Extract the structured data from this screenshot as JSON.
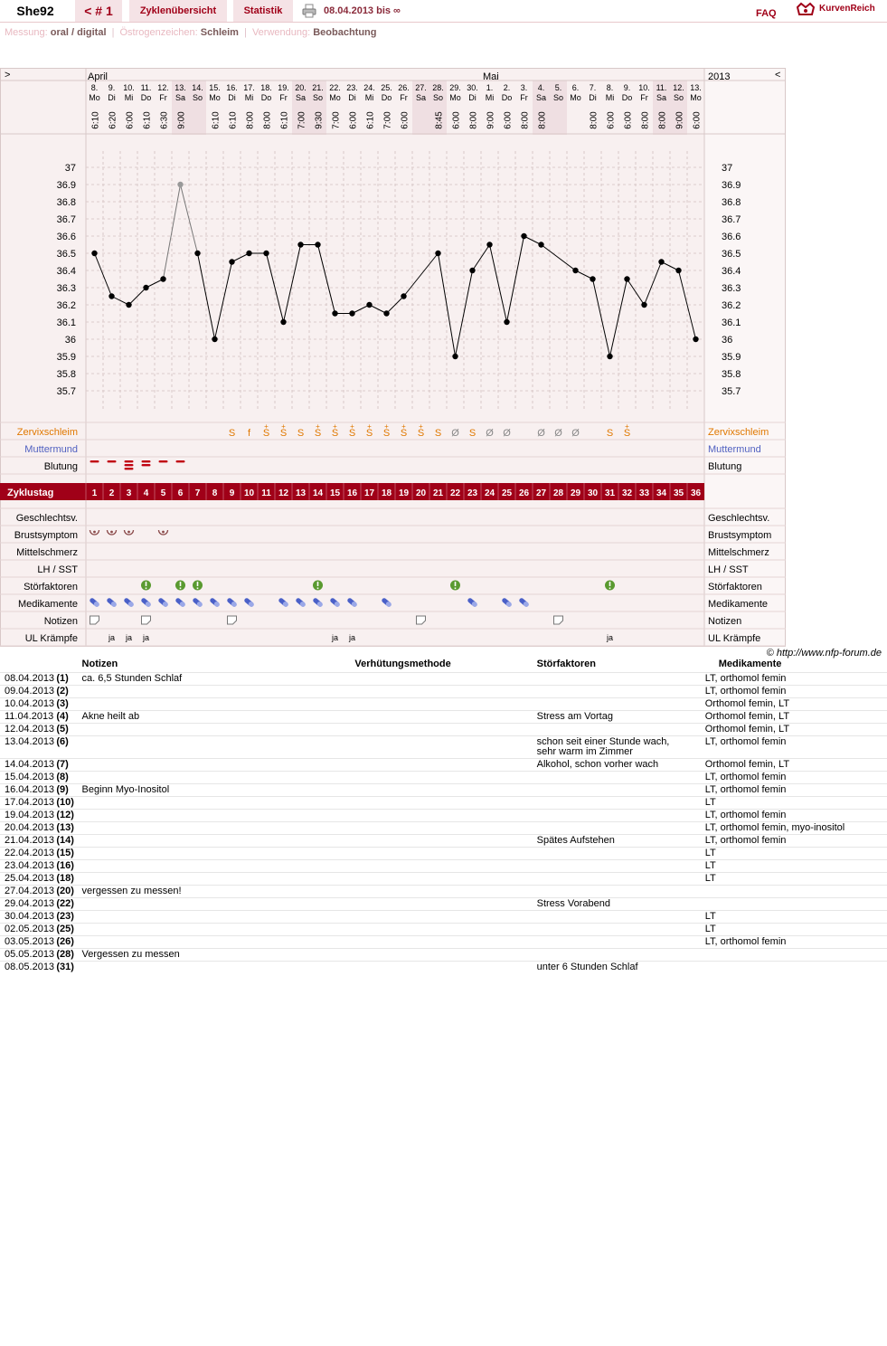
{
  "header": {
    "user": "She92",
    "cycle": "< # 1",
    "tab_overview": "Zyklenübersicht",
    "tab_stats": "Statistik",
    "range": "08.04.2013 bis ∞",
    "faq": "FAQ",
    "logo": "KurvenReich"
  },
  "info": {
    "messung_label": "Messung:",
    "messung_value": "oral / digital",
    "oestrogen_label": "Östrogenzeichen:",
    "oestrogen_value": "Schleim",
    "verwendung_label": "Verwendung:",
    "verwendung_value": "Beobachtung"
  },
  "chart_nav": {
    "prev": ">",
    "next": "<",
    "year": "2013",
    "month1": "April",
    "month2": "Mai"
  },
  "days": [
    {
      "d": "8.",
      "w": "Mo",
      "t": "6:10",
      "we": false
    },
    {
      "d": "9.",
      "w": "Di",
      "t": "6:20",
      "we": false
    },
    {
      "d": "10.",
      "w": "Mi",
      "t": "6:00",
      "we": false
    },
    {
      "d": "11.",
      "w": "Do",
      "t": "6:10",
      "we": false
    },
    {
      "d": "12.",
      "w": "Fr",
      "t": "6:30",
      "we": false
    },
    {
      "d": "13.",
      "w": "Sa",
      "t": "9:00",
      "we": true
    },
    {
      "d": "14.",
      "w": "So",
      "t": "",
      "we": true
    },
    {
      "d": "15.",
      "w": "Mo",
      "t": "6:10",
      "we": false
    },
    {
      "d": "16.",
      "w": "Di",
      "t": "6:10",
      "we": false
    },
    {
      "d": "17.",
      "w": "Mi",
      "t": "8:00",
      "we": false
    },
    {
      "d": "18.",
      "w": "Do",
      "t": "8:00",
      "we": false
    },
    {
      "d": "19.",
      "w": "Fr",
      "t": "6:10",
      "we": false
    },
    {
      "d": "20.",
      "w": "Sa",
      "t": "7:00",
      "we": true
    },
    {
      "d": "21.",
      "w": "So",
      "t": "9:30",
      "we": true
    },
    {
      "d": "22.",
      "w": "Mo",
      "t": "7:00",
      "we": false
    },
    {
      "d": "23.",
      "w": "Di",
      "t": "6:00",
      "we": false
    },
    {
      "d": "24.",
      "w": "Mi",
      "t": "6:10",
      "we": false
    },
    {
      "d": "25.",
      "w": "Do",
      "t": "7:00",
      "we": false
    },
    {
      "d": "26.",
      "w": "Fr",
      "t": "6:00",
      "we": false
    },
    {
      "d": "27.",
      "w": "Sa",
      "t": "",
      "we": true
    },
    {
      "d": "28.",
      "w": "So",
      "t": "8:45",
      "we": true
    },
    {
      "d": "29.",
      "w": "Mo",
      "t": "6:00",
      "we": false
    },
    {
      "d": "30.",
      "w": "Di",
      "t": "8:00",
      "we": false
    },
    {
      "d": "1.",
      "w": "Mi",
      "t": "9:00",
      "we": false
    },
    {
      "d": "2.",
      "w": "Do",
      "t": "6:00",
      "we": false
    },
    {
      "d": "3.",
      "w": "Fr",
      "t": "8:00",
      "we": false
    },
    {
      "d": "4.",
      "w": "Sa",
      "t": "8:00",
      "we": true
    },
    {
      "d": "5.",
      "w": "So",
      "t": "",
      "we": true
    },
    {
      "d": "6.",
      "w": "Mo",
      "t": "",
      "we": false
    },
    {
      "d": "7.",
      "w": "Di",
      "t": "8:00",
      "we": false
    },
    {
      "d": "8.",
      "w": "Mi",
      "t": "6:00",
      "we": false
    },
    {
      "d": "9.",
      "w": "Do",
      "t": "6:00",
      "we": false
    },
    {
      "d": "10.",
      "w": "Fr",
      "t": "8:00",
      "we": false
    },
    {
      "d": "11.",
      "w": "Sa",
      "t": "8:00",
      "we": true
    },
    {
      "d": "12.",
      "w": "So",
      "t": "9:00",
      "we": true
    },
    {
      "d": "13.",
      "w": "Mo",
      "t": "6:00",
      "we": false
    }
  ],
  "chart_data": {
    "type": "line",
    "title": "",
    "y_ticks": [
      "37",
      "36.9",
      "36.8",
      "36.7",
      "36.6",
      "36.5",
      "36.4",
      "36.3",
      "36.2",
      "36.1",
      "36",
      "35.9",
      "35.8",
      "35.7"
    ],
    "ylim": [
      35.6,
      37.0
    ],
    "x": [
      1,
      2,
      3,
      4,
      5,
      6,
      7,
      8,
      9,
      10,
      11,
      12,
      13,
      14,
      15,
      16,
      17,
      18,
      19,
      20,
      21,
      22,
      23,
      24,
      25,
      26,
      27,
      28,
      29,
      30,
      31,
      32,
      33,
      34,
      35,
      36
    ],
    "temperatures": [
      36.5,
      36.25,
      36.2,
      36.3,
      36.35,
      36.9,
      36.5,
      36.0,
      36.45,
      36.5,
      36.5,
      36.1,
      36.55,
      36.55,
      36.15,
      36.15,
      36.2,
      36.15,
      36.25,
      null,
      36.5,
      35.9,
      36.4,
      36.55,
      36.1,
      36.6,
      36.55,
      null,
      36.4,
      36.35,
      35.9,
      36.35,
      36.2,
      36.45,
      36.4,
      36.0
    ],
    "excluded_days": [
      6
    ],
    "grid": true
  },
  "labels": {
    "zervix": "Zervixschleim",
    "muttermund": "Muttermund",
    "blutung": "Blutung",
    "zyklustag": "Zyklustag",
    "gv": "Geschlechtsv.",
    "brust": "Brustsymptom",
    "mittel": "Mittelschmerz",
    "lh": "LH / SST",
    "stoer": "Störfaktoren",
    "medi": "Medikamente",
    "notizen": "Notizen",
    "ul": "UL Krämpfe"
  },
  "rows": {
    "zervix": [
      "",
      "",
      "",
      "",
      "",
      "",
      "",
      "",
      "S",
      "f",
      "S+",
      "S+",
      "S",
      "S+",
      "S+",
      "S+",
      "S+",
      "S+",
      "S+",
      "S+",
      "S",
      "Ø",
      "S",
      "Ø",
      "Ø",
      "",
      "Ø",
      "Ø",
      "Ø",
      "",
      "S",
      "S+",
      "",
      "",
      "",
      ""
    ],
    "blutung": [
      1,
      1,
      3,
      2,
      1,
      1,
      0,
      0,
      0,
      0,
      0,
      0,
      0,
      0,
      0,
      0,
      0,
      0,
      0,
      0,
      0,
      0,
      0,
      0,
      0,
      0,
      0,
      0,
      0,
      0,
      0,
      0,
      0,
      0,
      0,
      0
    ],
    "brust": [
      1,
      1,
      1,
      0,
      1,
      0,
      0,
      0,
      0,
      0,
      0,
      0,
      0,
      0,
      0,
      0,
      0,
      0,
      0,
      0,
      0,
      0,
      0,
      0,
      0,
      0,
      0,
      0,
      0,
      0,
      0,
      0,
      0,
      0,
      0,
      0
    ],
    "stoer": [
      0,
      0,
      0,
      1,
      0,
      1,
      1,
      0,
      0,
      0,
      0,
      0,
      0,
      1,
      0,
      0,
      0,
      0,
      0,
      0,
      0,
      1,
      0,
      0,
      0,
      0,
      0,
      0,
      0,
      0,
      1,
      0,
      0,
      0,
      0,
      0
    ],
    "medi": [
      1,
      1,
      1,
      1,
      1,
      1,
      1,
      1,
      1,
      1,
      0,
      1,
      1,
      1,
      1,
      1,
      0,
      1,
      0,
      0,
      0,
      0,
      1,
      0,
      1,
      1,
      0,
      0,
      0,
      0,
      0,
      0,
      0,
      0,
      0,
      0
    ],
    "notizen": [
      1,
      0,
      0,
      1,
      0,
      0,
      0,
      0,
      1,
      0,
      0,
      0,
      0,
      0,
      0,
      0,
      0,
      0,
      0,
      1,
      0,
      0,
      0,
      0,
      0,
      0,
      0,
      1,
      0,
      0,
      0,
      0,
      0,
      0,
      0,
      0
    ],
    "ul": [
      "",
      "ja",
      "ja",
      "ja",
      "",
      "",
      "",
      "",
      "",
      "",
      "",
      "",
      "",
      "",
      "ja",
      "ja",
      "",
      "",
      "",
      "",
      "",
      "",
      "",
      "",
      "",
      "",
      "",
      "",
      "",
      "",
      "ja",
      "",
      "",
      "",
      "",
      ""
    ]
  },
  "copyright": "© http://www.nfp-forum.de",
  "notes_table": {
    "headers": {
      "notizen": "Notizen",
      "verhuetung": "Verhütungsmethode",
      "stoer": "Störfaktoren",
      "medi": "Medikamente"
    },
    "rows": [
      {
        "date": "08.04.2013",
        "day": "(1)",
        "notiz": "ca. 6,5 Stunden Schlaf",
        "verh": "",
        "stoer": "",
        "medi": "LT, orthomol femin"
      },
      {
        "date": "09.04.2013",
        "day": "(2)",
        "notiz": "",
        "verh": "",
        "stoer": "",
        "medi": "LT, orthomol femin"
      },
      {
        "date": "10.04.2013",
        "day": "(3)",
        "notiz": "",
        "verh": "",
        "stoer": "",
        "medi": "Orthomol femin, LT"
      },
      {
        "date": "11.04.2013",
        "day": "(4)",
        "notiz": "Akne heilt ab",
        "verh": "",
        "stoer": "Stress am Vortag",
        "medi": "Orthomol femin, LT"
      },
      {
        "date": "12.04.2013",
        "day": "(5)",
        "notiz": "",
        "verh": "",
        "stoer": "",
        "medi": "Orthomol femin, LT"
      },
      {
        "date": "13.04.2013",
        "day": "(6)",
        "notiz": "",
        "verh": "",
        "stoer": "schon seit einer Stunde wach,\nsehr warm im Zimmer",
        "medi": "LT, orthomol femin"
      },
      {
        "date": "14.04.2013",
        "day": "(7)",
        "notiz": "",
        "verh": "",
        "stoer": "Alkohol, schon vorher wach",
        "medi": "Orthomol femin, LT"
      },
      {
        "date": "15.04.2013",
        "day": "(8)",
        "notiz": "",
        "verh": "",
        "stoer": "",
        "medi": "LT, orthomol femin"
      },
      {
        "date": "16.04.2013",
        "day": "(9)",
        "notiz": "Beginn Myo-Inositol",
        "verh": "",
        "stoer": "",
        "medi": "LT, orthomol femin"
      },
      {
        "date": "17.04.2013",
        "day": "(10)",
        "notiz": "",
        "verh": "",
        "stoer": "",
        "medi": "LT"
      },
      {
        "date": "19.04.2013",
        "day": "(12)",
        "notiz": "",
        "verh": "",
        "stoer": "",
        "medi": "LT, orthomol femin"
      },
      {
        "date": "20.04.2013",
        "day": "(13)",
        "notiz": "",
        "verh": "",
        "stoer": "",
        "medi": "LT, orthomol femin, myo-inositol"
      },
      {
        "date": "21.04.2013",
        "day": "(14)",
        "notiz": "",
        "verh": "",
        "stoer": "Spätes Aufstehen",
        "medi": "LT, orthomol femin"
      },
      {
        "date": "22.04.2013",
        "day": "(15)",
        "notiz": "",
        "verh": "",
        "stoer": "",
        "medi": "LT"
      },
      {
        "date": "23.04.2013",
        "day": "(16)",
        "notiz": "",
        "verh": "",
        "stoer": "",
        "medi": "LT"
      },
      {
        "date": "25.04.2013",
        "day": "(18)",
        "notiz": "",
        "verh": "",
        "stoer": "",
        "medi": "LT"
      },
      {
        "date": "27.04.2013",
        "day": "(20)",
        "notiz": "vergessen zu messen!",
        "verh": "",
        "stoer": "",
        "medi": ""
      },
      {
        "date": "29.04.2013",
        "day": "(22)",
        "notiz": "",
        "verh": "",
        "stoer": "Stress Vorabend",
        "medi": ""
      },
      {
        "date": "30.04.2013",
        "day": "(23)",
        "notiz": "",
        "verh": "",
        "stoer": "",
        "medi": "LT"
      },
      {
        "date": "02.05.2013",
        "day": "(25)",
        "notiz": "",
        "verh": "",
        "stoer": "",
        "medi": "LT"
      },
      {
        "date": "03.05.2013",
        "day": "(26)",
        "notiz": "",
        "verh": "",
        "stoer": "",
        "medi": "LT, orthomol femin"
      },
      {
        "date": "05.05.2013",
        "day": "(28)",
        "notiz": "Vergessen zu messen",
        "verh": "",
        "stoer": "",
        "medi": ""
      },
      {
        "date": "08.05.2013",
        "day": "(31)",
        "notiz": "",
        "verh": "",
        "stoer": "unter 6 Stunden Schlaf",
        "medi": ""
      }
    ]
  },
  "colors": {
    "accent": "#a00018",
    "tab_bg": "#f5e3e6",
    "chart_bg": "#f8f0f0",
    "weekend_bg": "#efdfe2",
    "zervix": "#e07800",
    "muttermund": "#5060c0",
    "blood": "#c00010",
    "stoer_green": "#5a9a30",
    "pill_blue": "#4a60c8"
  }
}
